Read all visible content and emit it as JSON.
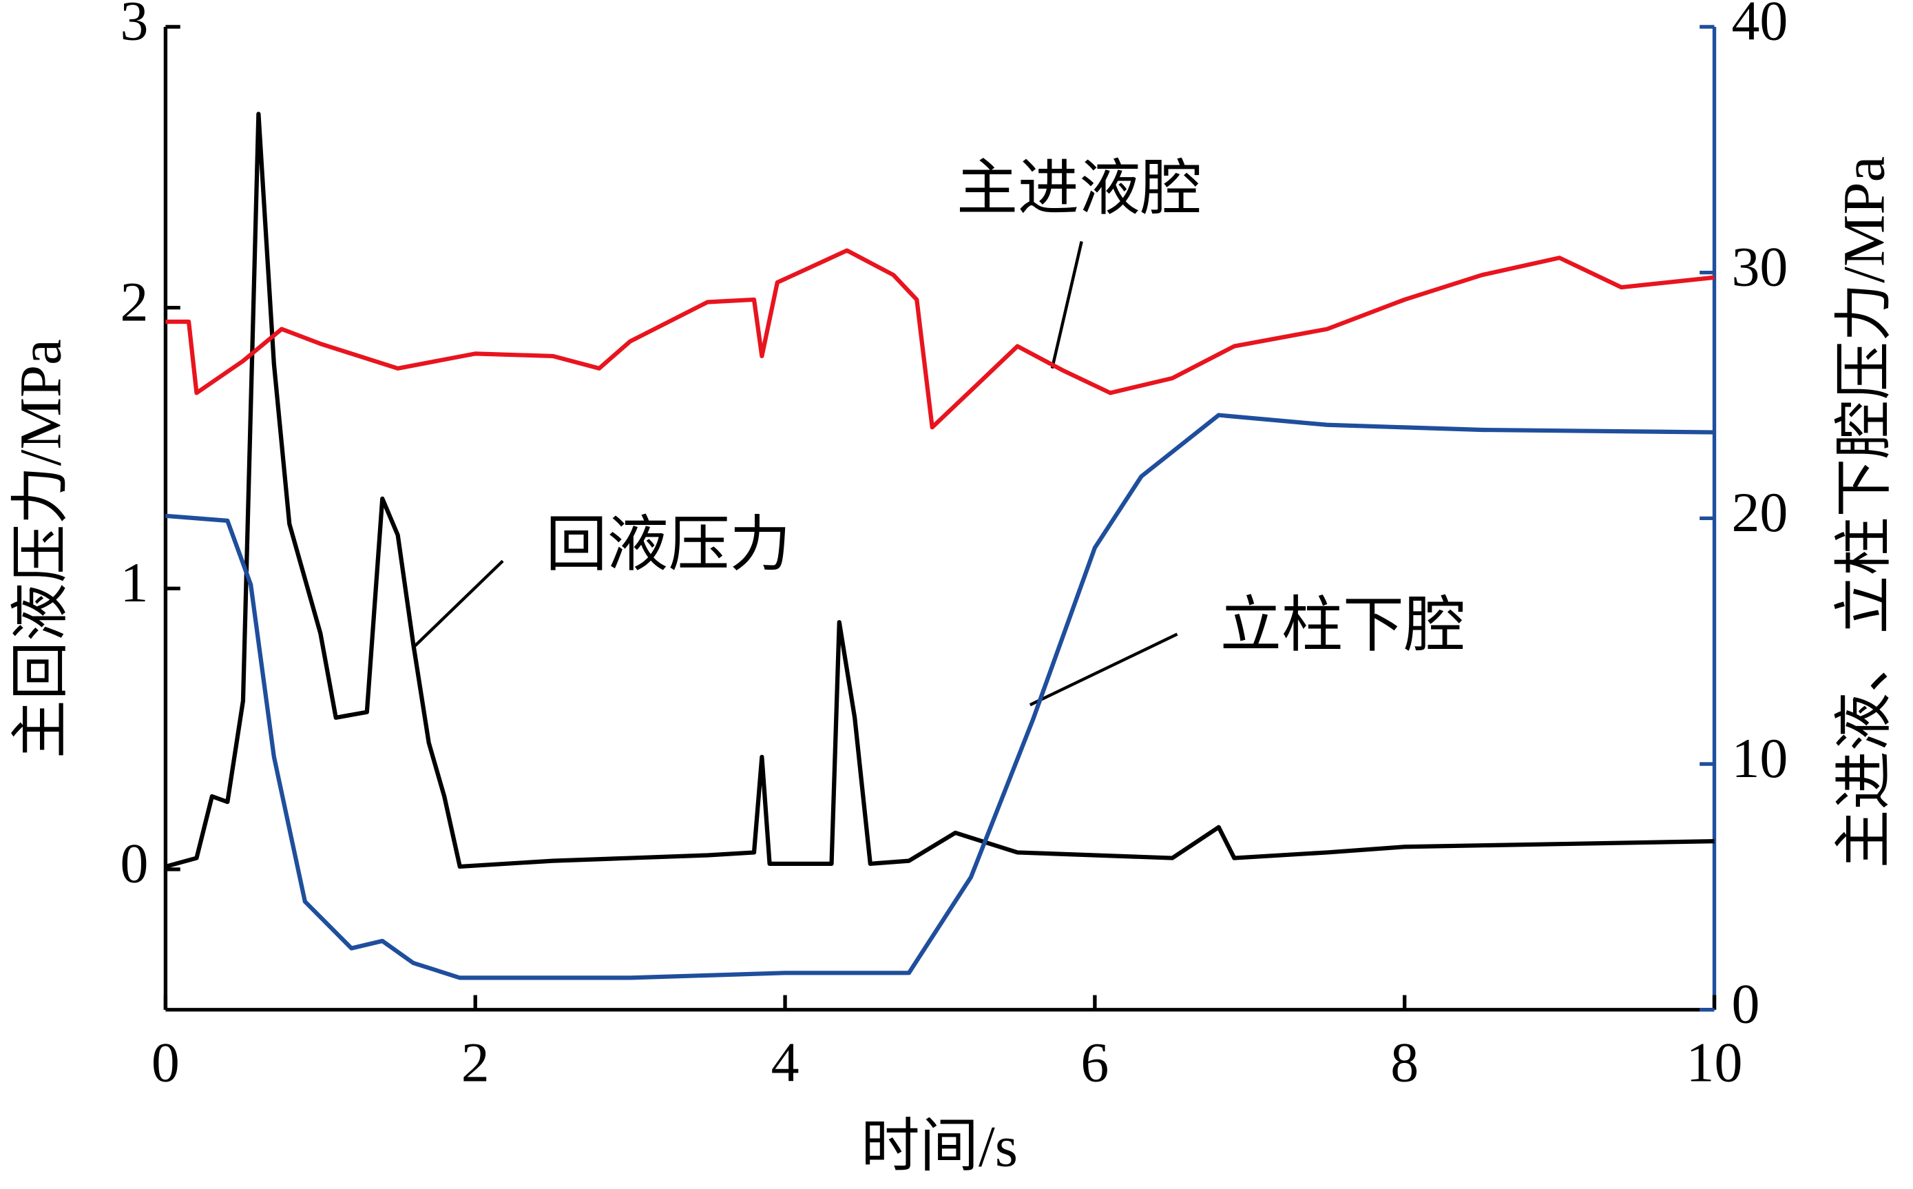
{
  "chart_data": {
    "type": "line",
    "x_label": "时间/s",
    "y_label": "主回液压力/MPa",
    "y2_label": "主进液、立柱下腔压力/MPa",
    "xlim": [
      0,
      10
    ],
    "xticks": [
      0,
      2,
      4,
      6,
      8,
      10
    ],
    "ylim": [
      -0.5,
      3
    ],
    "yticks": [
      0,
      1,
      2,
      3
    ],
    "y2lim": [
      0,
      40
    ],
    "y2ticks": [
      0,
      10,
      20,
      30,
      40
    ],
    "y2_color": "#1f4e9c",
    "series": [
      {
        "name": "回液压力",
        "color": "#000000",
        "x": [
          0,
          0.2,
          0.3,
          0.4,
          0.5,
          0.6,
          0.7,
          0.8,
          1.0,
          1.1,
          1.3,
          1.4,
          1.5,
          1.6,
          1.7,
          1.8,
          1.9,
          2.5,
          3.0,
          3.5,
          3.8,
          3.85,
          3.9,
          4.3,
          4.35,
          4.45,
          4.55,
          4.8,
          5.1,
          5.5,
          6.0,
          6.5,
          6.8,
          6.9,
          7.5,
          8.0,
          9.0,
          10
        ],
        "values": [
          0.01,
          0.04,
          0.26,
          0.24,
          0.6,
          2.69,
          1.8,
          1.23,
          0.84,
          0.54,
          0.56,
          1.32,
          1.19,
          0.8,
          0.45,
          0.26,
          0.01,
          0.03,
          0.04,
          0.05,
          0.06,
          0.4,
          0.02,
          0.02,
          0.88,
          0.54,
          0.02,
          0.03,
          0.13,
          0.06,
          0.05,
          0.04,
          0.15,
          0.04,
          0.06,
          0.08,
          0.09,
          0.1
        ]
      },
      {
        "name": "主进液腔",
        "color": "#e8141e",
        "axis": "y2",
        "x": [
          0,
          0.15,
          0.2,
          0.5,
          0.75,
          1.0,
          1.5,
          2.0,
          2.5,
          2.8,
          3.0,
          3.5,
          3.8,
          3.85,
          3.95,
          4.4,
          4.7,
          4.85,
          4.95,
          5.2,
          5.5,
          5.8,
          6.1,
          6.5,
          6.9,
          7.5,
          8.0,
          8.5,
          9.0,
          9.4,
          10
        ],
        "values": [
          28.0,
          28.0,
          25.1,
          26.4,
          27.7,
          27.1,
          26.1,
          26.7,
          26.6,
          26.1,
          27.2,
          28.8,
          28.9,
          26.6,
          29.6,
          30.9,
          29.9,
          28.9,
          23.7,
          25.2,
          27.0,
          26.0,
          25.1,
          25.7,
          27.0,
          27.7,
          28.9,
          29.9,
          30.6,
          29.4,
          29.8
        ]
      },
      {
        "name": "立柱下腔",
        "color": "#1f4e9c",
        "axis": "y2",
        "x": [
          0,
          0.4,
          0.55,
          0.7,
          0.9,
          1.2,
          1.4,
          1.6,
          1.9,
          3.0,
          4.0,
          4.8,
          5.2,
          5.6,
          6.0,
          6.3,
          6.8,
          7.5,
          8.5,
          10
        ],
        "values": [
          20.1,
          19.9,
          17.3,
          10.3,
          4.4,
          2.5,
          2.8,
          1.9,
          1.3,
          1.3,
          1.5,
          1.5,
          5.4,
          11.8,
          18.8,
          21.7,
          24.2,
          23.8,
          23.6,
          23.5
        ]
      }
    ]
  }
}
